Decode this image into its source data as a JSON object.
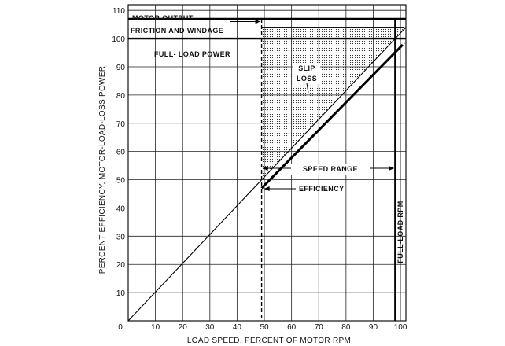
{
  "chart_data": {
    "type": "line",
    "xlabel": "LOAD SPEED, PERCENT OF MOTOR RPM",
    "ylabel": "PERCENT EFFICIENCY, MOTOR-LOAD-LOSS POWER",
    "xlim": [
      0,
      102
    ],
    "ylim": [
      0,
      112
    ],
    "x_ticks": [
      0,
      10,
      20,
      30,
      40,
      50,
      60,
      70,
      80,
      90,
      100
    ],
    "y_ticks": [
      10,
      20,
      30,
      40,
      50,
      60,
      70,
      80,
      90,
      100,
      110
    ],
    "grid": true,
    "series": [
      {
        "name": "EFFICIENCY",
        "kind": "thin-line",
        "x": [
          0,
          102
        ],
        "y": [
          0,
          104
        ]
      },
      {
        "name": "EFFICIENCY",
        "kind": "thick-line",
        "x": [
          49,
          100
        ],
        "y": [
          47,
          97
        ]
      },
      {
        "name": "MOTOR OUTPUT",
        "kind": "hline",
        "y": 107
      },
      {
        "name": "FULL-LOAD POWER",
        "kind": "hline",
        "y": 100
      }
    ],
    "annotations": {
      "motor_output": "MOTOR OUTPUT",
      "friction_windage": "FRICTION AND WINDAGE",
      "full_load_power": "FULL- LOAD POWER",
      "slip_loss_1": "SLIP",
      "slip_loss_2": "LOSS",
      "speed_range": "SPEED RANGE",
      "efficiency": "EFFICIENCY",
      "full_load_rpm": "FULL-LOAD RPM"
    },
    "markers": {
      "speed_range_start": 49,
      "speed_range_end": 98,
      "friction_windage_top": 107,
      "friction_windage_bottom": 104
    }
  }
}
